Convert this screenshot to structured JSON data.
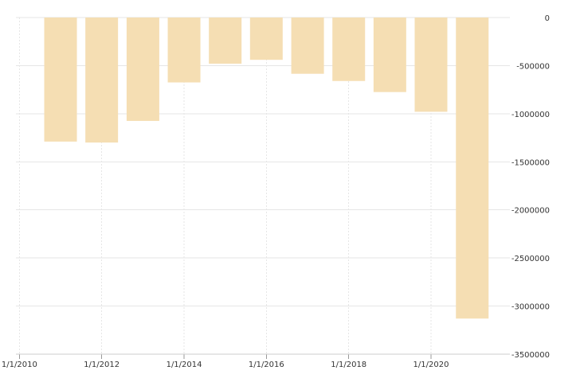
{
  "chart_data": {
    "type": "bar",
    "title": "",
    "xlabel": "",
    "ylabel": "",
    "categories": [
      "1/1/2011",
      "1/1/2012",
      "1/1/2013",
      "1/1/2014",
      "1/1/2015",
      "1/1/2016",
      "1/1/2017",
      "1/1/2018",
      "1/1/2019",
      "1/1/2020",
      "1/1/2021"
    ],
    "values": [
      -1290000,
      -1300000,
      -1075000,
      -675000,
      -480000,
      -440000,
      -585000,
      -660000,
      -775000,
      -980000,
      -3130000
    ],
    "ylim": [
      -3500000,
      0
    ],
    "y_ticks": [
      0,
      -500000,
      -1000000,
      -1500000,
      -2000000,
      -2500000,
      -3000000,
      -3500000
    ],
    "y_tick_labels": [
      "0",
      "-500000",
      "-1000000",
      "-1500000",
      "-2000000",
      "-2500000",
      "-3000000",
      "-3500000"
    ],
    "x_ticks": [
      "2010-01-01",
      "2012-01-01",
      "2014-01-01",
      "2016-01-01",
      "2018-01-01",
      "2020-01-01"
    ],
    "x_tick_labels": [
      "1/1/2010",
      "1/1/2012",
      "1/1/2014",
      "1/1/2016",
      "1/1/2018",
      "1/1/2020"
    ],
    "xlim": [
      "2009-12-01",
      "2021-12-01"
    ],
    "y_axis_side": "right",
    "grid": true,
    "legend": "none",
    "bar_color": "#f5deb3",
    "grid_color": "#e6e6e6"
  }
}
